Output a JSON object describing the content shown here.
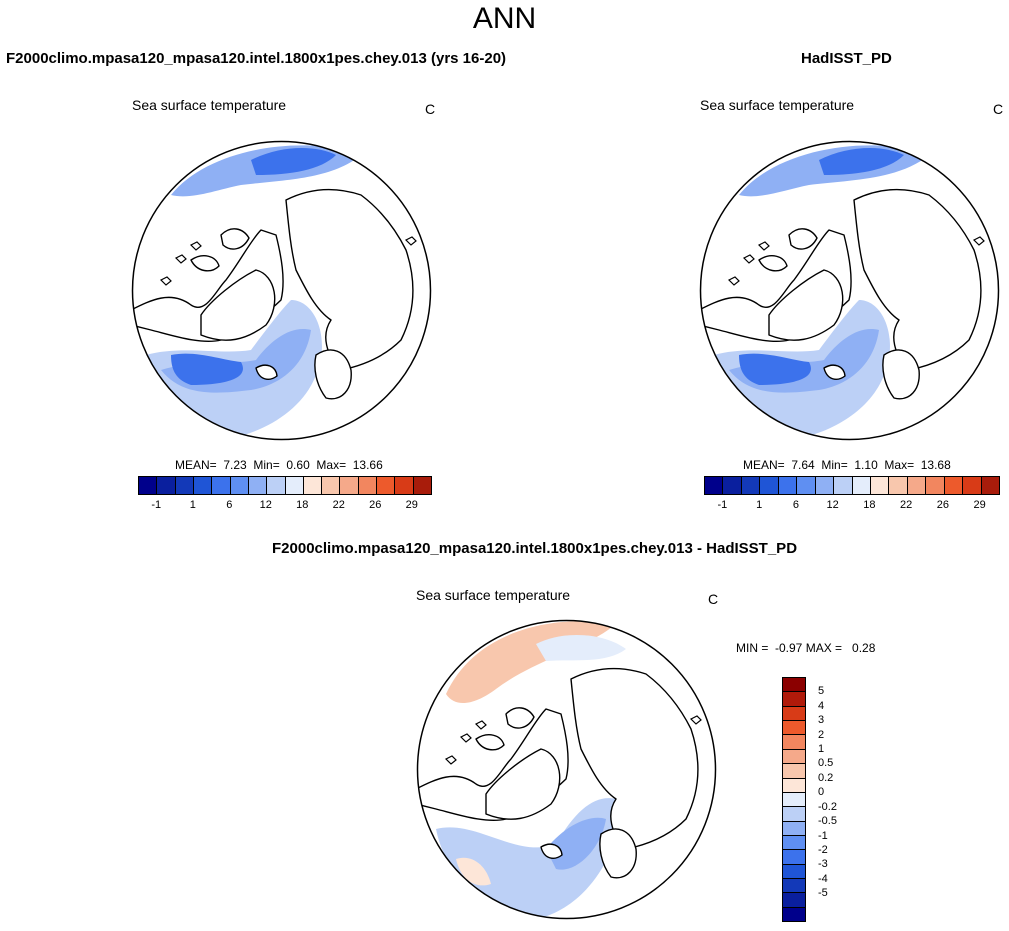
{
  "page": {
    "title": "ANN"
  },
  "panels": [
    {
      "title": "F2000climo.mpasa120_mpasa120.intel.1800x1pes.chey.013 (yrs 16-20)",
      "variable": "Sea surface temperature",
      "unit": "C",
      "stats": "MEAN=  7.23  Min=  0.60  Max=  13.66"
    },
    {
      "title": "HadISST_PD",
      "variable": "Sea surface temperature",
      "unit": "C",
      "stats": "MEAN=  7.64  Min=  1.10  Max=  13.68"
    },
    {
      "title": "F2000climo.mpasa120_mpasa120.intel.1800x1pes.chey.013 - HadISST_PD",
      "variable": "Sea surface temperature",
      "unit": "C",
      "stats": "MIN =  -0.97 MAX =   0.28"
    }
  ],
  "sst_colorbar": {
    "colors": [
      "#00008b",
      "#0a1f9e",
      "#1339b8",
      "#1f55d6",
      "#3c72ec",
      "#5f8ff2",
      "#8fb0f4",
      "#bcd0f6",
      "#e4edfb",
      "#fde6d8",
      "#f8c7ad",
      "#f5a98a",
      "#f2865f",
      "#ed5a2c",
      "#d83b17",
      "#a81c0b"
    ],
    "tick_labels": [
      "-1",
      "1",
      "6",
      "12",
      "18",
      "22",
      "26",
      "29"
    ]
  },
  "diff_colorbar": {
    "colors": [
      "#8b0000",
      "#b01a0a",
      "#d83b17",
      "#ed5a2c",
      "#f2865f",
      "#f5a98a",
      "#f8c7ad",
      "#fde6d8",
      "#e4edfb",
      "#bcd0f6",
      "#8fb0f4",
      "#5f8ff2",
      "#3c72ec",
      "#1f55d6",
      "#1339b8",
      "#0a1f9e",
      "#00008b"
    ],
    "tick_labels": [
      "5",
      "4",
      "3",
      "2",
      "1",
      "0.5",
      "0.2",
      "0",
      "-0.2",
      "-0.5",
      "-1",
      "-2",
      "-3",
      "-4",
      "-5"
    ]
  }
}
